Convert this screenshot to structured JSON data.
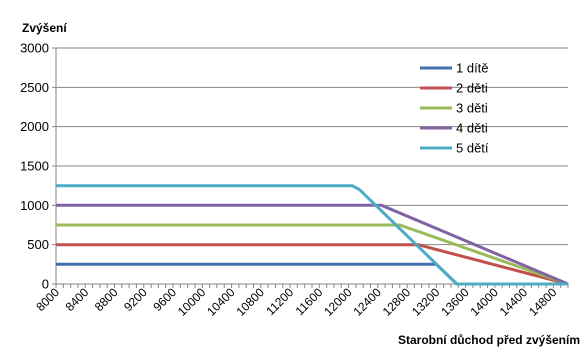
{
  "chart_data": {
    "type": "line",
    "ylabel": "Zvýšení",
    "xlabel": "Starobní důchod před zvýšením",
    "ylim": [
      0,
      3000
    ],
    "yticks": [
      0,
      500,
      1000,
      1500,
      2000,
      2500,
      3000
    ],
    "xlim": [
      8000,
      15000
    ],
    "xticks": [
      8000,
      8400,
      8800,
      9200,
      9600,
      10000,
      10400,
      10800,
      11200,
      11600,
      12000,
      12400,
      12800,
      13200,
      13600,
      14000,
      14400,
      14800
    ],
    "grid": "horizontal",
    "legend_position": "top-right",
    "series": [
      {
        "name": "1 dítě",
        "color": "#3F6FB0",
        "x": [
          8000,
          13200,
          13480,
          15000
        ],
        "y": [
          250,
          250,
          0,
          0
        ]
      },
      {
        "name": "2 děti",
        "color": "#C0504D",
        "x": [
          8000,
          12950,
          15000
        ],
        "y": [
          500,
          500,
          0
        ]
      },
      {
        "name": "3 děti",
        "color": "#9BBB59",
        "x": [
          8000,
          12700,
          15000
        ],
        "y": [
          750,
          750,
          0
        ]
      },
      {
        "name": "4 děti",
        "color": "#8064A2",
        "x": [
          8000,
          12450,
          15000
        ],
        "y": [
          1000,
          1000,
          0
        ]
      },
      {
        "name": "5 dětí",
        "color": "#4BACC6",
        "x": [
          8000,
          12050,
          12150,
          13480,
          15000
        ],
        "y": [
          1250,
          1250,
          1200,
          0,
          0
        ]
      }
    ]
  }
}
